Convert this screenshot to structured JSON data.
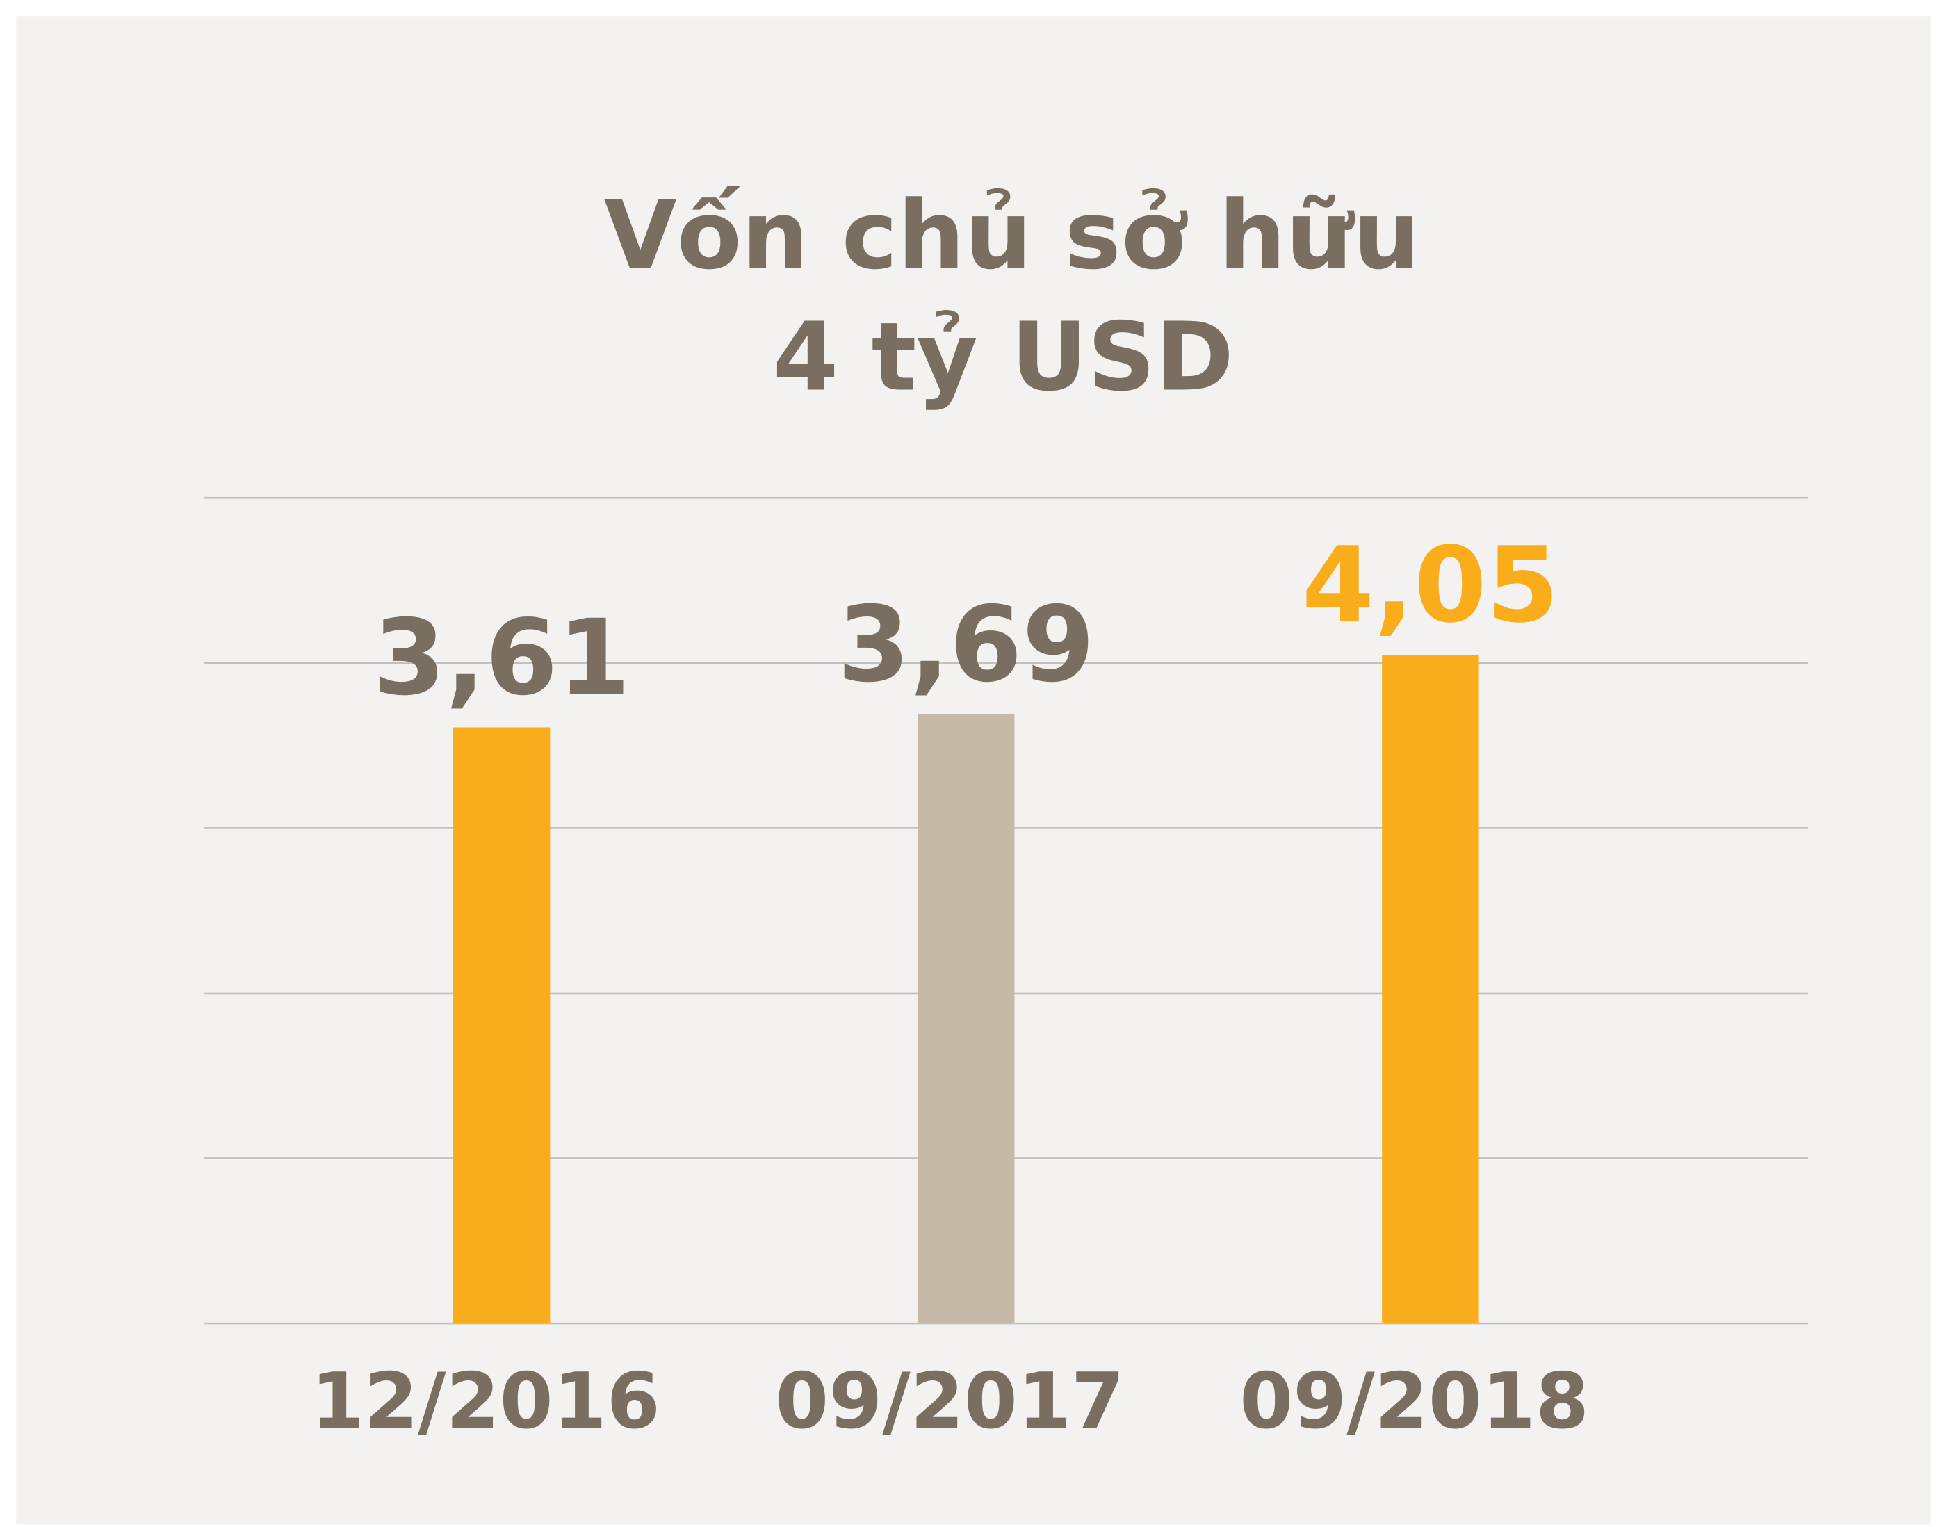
{
  "chart_data": {
    "type": "bar",
    "title": [
      "Vốn chủ sở hữu",
      "4 tỷ USD"
    ],
    "categories": [
      "12/2016",
      "09/2017",
      "09/2018"
    ],
    "values": [
      3.61,
      3.69,
      4.05
    ],
    "value_labels": [
      "3,61",
      "3,69",
      "4,05"
    ],
    "colors": [
      "#f9ad1a",
      "#c7b9a8",
      "#f9ad1a"
    ],
    "label_colors": [
      "#7a6e60",
      "#7a6e60",
      "#f9ad1a"
    ],
    "ylim": [
      0,
      5
    ],
    "yticks": [
      0,
      1,
      2,
      3,
      4,
      5
    ],
    "grid": true
  }
}
